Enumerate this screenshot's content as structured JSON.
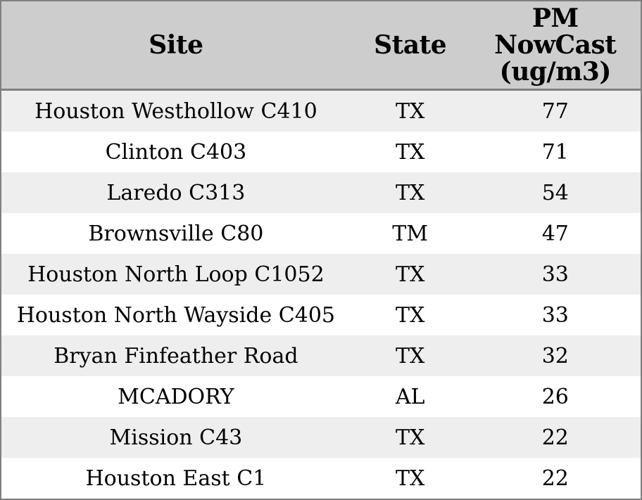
{
  "colors": {
    "header_bg": "#cdcdcd",
    "row_alt_bg": "#eeeeee",
    "row_bg": "#ffffff",
    "border": "#808080",
    "text": "#000000"
  },
  "table": {
    "header": {
      "site": "Site",
      "state": "State",
      "pm_lines": [
        "PM",
        "NowCast",
        "(ug/m3)"
      ]
    },
    "rows": [
      {
        "site": "Houston Westhollow C410",
        "state": "TX",
        "pm": "77"
      },
      {
        "site": "Clinton C403",
        "state": "TX",
        "pm": "71"
      },
      {
        "site": "Laredo C313",
        "state": "TX",
        "pm": "54"
      },
      {
        "site": "Brownsville C80",
        "state": "TM",
        "pm": "47"
      },
      {
        "site": "Houston North Loop C1052",
        "state": "TX",
        "pm": "33"
      },
      {
        "site": "Houston North Wayside C405",
        "state": "TX",
        "pm": "33"
      },
      {
        "site": "Bryan Finfeather Road",
        "state": "TX",
        "pm": "32"
      },
      {
        "site": "MCADORY",
        "state": "AL",
        "pm": "26"
      },
      {
        "site": "Mission C43",
        "state": "TX",
        "pm": "22"
      },
      {
        "site": "Houston East C1",
        "state": "TX",
        "pm": "22"
      }
    ]
  },
  "chart_data": {
    "type": "table",
    "title": "",
    "columns": [
      "Site",
      "State",
      "PM NowCast (ug/m3)"
    ],
    "rows": [
      [
        "Houston Westhollow C410",
        "TX",
        77
      ],
      [
        "Clinton C403",
        "TX",
        71
      ],
      [
        "Laredo C313",
        "TX",
        54
      ],
      [
        "Brownsville C80",
        "TM",
        47
      ],
      [
        "Houston North Loop C1052",
        "TX",
        33
      ],
      [
        "Houston North Wayside C405",
        "TX",
        33
      ],
      [
        "Bryan Finfeather Road",
        "TX",
        32
      ],
      [
        "MCADORY",
        "AL",
        26
      ],
      [
        "Mission C43",
        "TX",
        22
      ],
      [
        "Houston East C1",
        "TX",
        22
      ]
    ]
  }
}
